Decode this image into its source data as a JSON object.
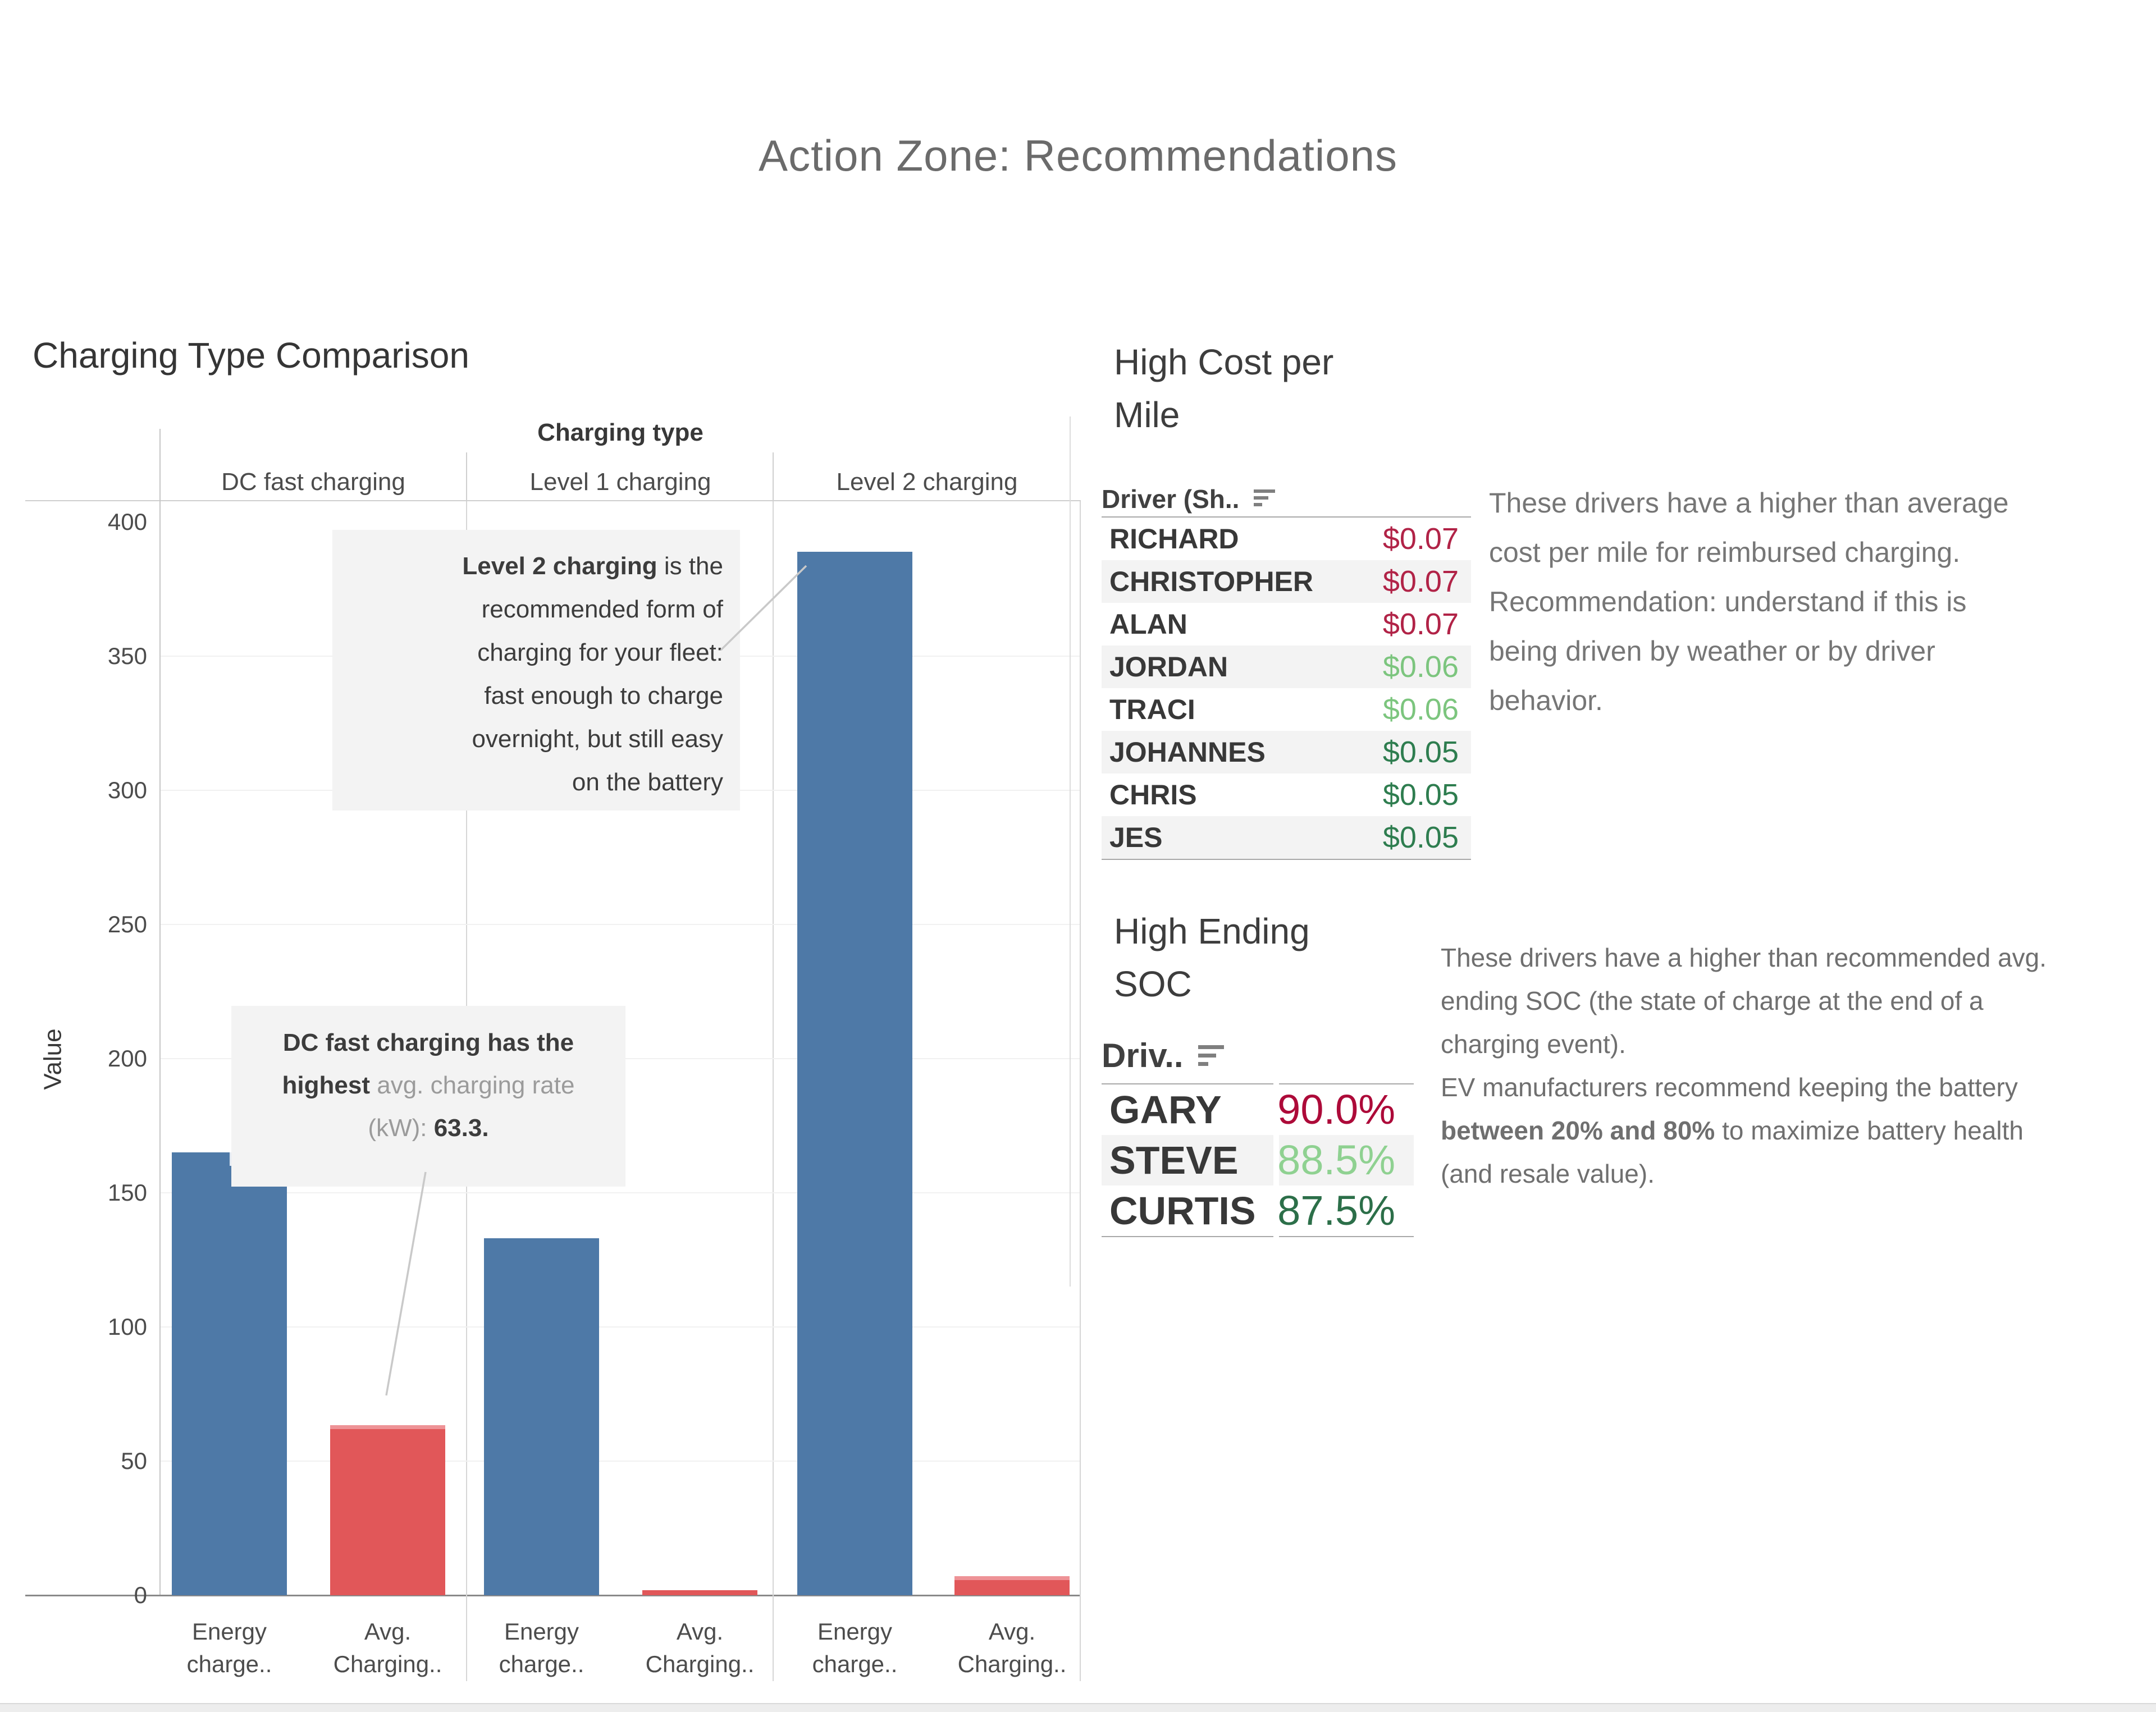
{
  "page": {
    "title": "Action Zone: Recommendations"
  },
  "chart_data": [
    {
      "type": "bar",
      "title": "Charging Type Comparison",
      "xlabel": "Charging type",
      "ylabel": "Value",
      "ylim": [
        0,
        400
      ],
      "yticks": [
        0,
        50,
        100,
        150,
        200,
        250,
        300,
        350,
        400
      ],
      "grid": "horizontal, faint",
      "legend_position": "none",
      "categories": [
        "DC fast charging",
        "Level 1 charging",
        "Level 2 charging"
      ],
      "series": [
        {
          "name": "Energy charge..",
          "color": "#4e79a7",
          "values": [
            165,
            133,
            389
          ],
          "reference_band_group0": {
            "low": 160,
            "high": 165,
            "band_color": "#e3e9f2"
          }
        },
        {
          "name": "Avg. Charging..",
          "color": "#e15759",
          "values": [
            63.3,
            1.9,
            7.1
          ]
        }
      ],
      "bar_xlabels": [
        [
          "Energy",
          "charge.."
        ],
        [
          "Avg.",
          "Charging.."
        ]
      ],
      "annotations": [
        {
          "id": "level2",
          "lines": [
            [
              {
                "t": "Level 2 charging",
                "b": true
              },
              {
                "t": " is the"
              }
            ],
            [
              {
                "t": "recommended form of"
              }
            ],
            [
              {
                "t": "charging for your fleet:"
              }
            ],
            [
              {
                "t": "fast enough to charge"
              }
            ],
            [
              {
                "t": "overnight, but still easy"
              }
            ],
            [
              {
                "t": "on the battery"
              }
            ]
          ]
        },
        {
          "id": "dcfast",
          "lines": [
            [
              {
                "t": "DC fast charging has the",
                "b": true
              }
            ],
            [
              {
                "t": "highest ",
                "b": true
              },
              {
                "t": "avg. charging rate",
                "g": true
              }
            ],
            [
              {
                "t": "(kW): ",
                "g": true
              },
              {
                "t": "63.3.",
                "b": true
              }
            ]
          ]
        }
      ]
    },
    {
      "type": "table",
      "title": "High Cost per\nMile",
      "header": "Driver (Sh..",
      "sort_icon": "sort-descending",
      "rows": [
        {
          "name": "RICHARD",
          "value": "$0.07",
          "color": "#b12347"
        },
        {
          "name": "CHRISTOPHER",
          "value": "$0.07",
          "color": "#b12347"
        },
        {
          "name": "ALAN",
          "value": "$0.07",
          "color": "#b12347"
        },
        {
          "name": "JORDAN",
          "value": "$0.06",
          "color": "#7cc57e"
        },
        {
          "name": "TRACI",
          "value": "$0.06",
          "color": "#7cc57e"
        },
        {
          "name": "JOHANNES",
          "value": "$0.05",
          "color": "#2e7d4f"
        },
        {
          "name": "CHRIS",
          "value": "$0.05",
          "color": "#2e7d4f"
        },
        {
          "name": "JES",
          "value": "$0.05",
          "color": "#2e7d4f"
        }
      ]
    },
    {
      "type": "table",
      "title": "High Ending\nSOC",
      "header": "Driv..",
      "sort_icon": "sort-descending",
      "rows": [
        {
          "name": "GARY",
          "value": "90.0%",
          "color": "#ad0a39"
        },
        {
          "name": "STEVE",
          "value": "88.5%",
          "color": "#8fd191"
        },
        {
          "name": "CURTIS",
          "value": "87.5%",
          "color": "#2c6f49"
        }
      ]
    }
  ],
  "text_blocks": {
    "cost_note": "These drivers have a higher than average\ncost per mile for reimbursed charging.\nRecommendation: understand if this is\nbeing driven by weather or by driver\nbehavior.",
    "soc_note_lines": [
      [
        {
          "t": "These drivers have a higher than recommended avg."
        }
      ],
      [
        {
          "t": "ending SOC (the state of charge at the end of a"
        }
      ],
      [
        {
          "t": "charging event)."
        }
      ],
      [
        {
          "t": "EV manufacturers recommend keeping the battery"
        }
      ],
      [
        {
          "t": "between 20% and 80%",
          "b": true
        },
        {
          "t": " to maximize battery health"
        }
      ],
      [
        {
          "t": "(and resale value)."
        }
      ]
    ]
  },
  "colors": {
    "bar_blue": "#4e79a7",
    "bar_red": "#e15759",
    "bar_red_cap": "#ee9397",
    "band_light": "#e3e9f2",
    "value_red": "#b12347",
    "value_green_light": "#7cc57e",
    "value_green_dark": "#2e7d4f"
  }
}
